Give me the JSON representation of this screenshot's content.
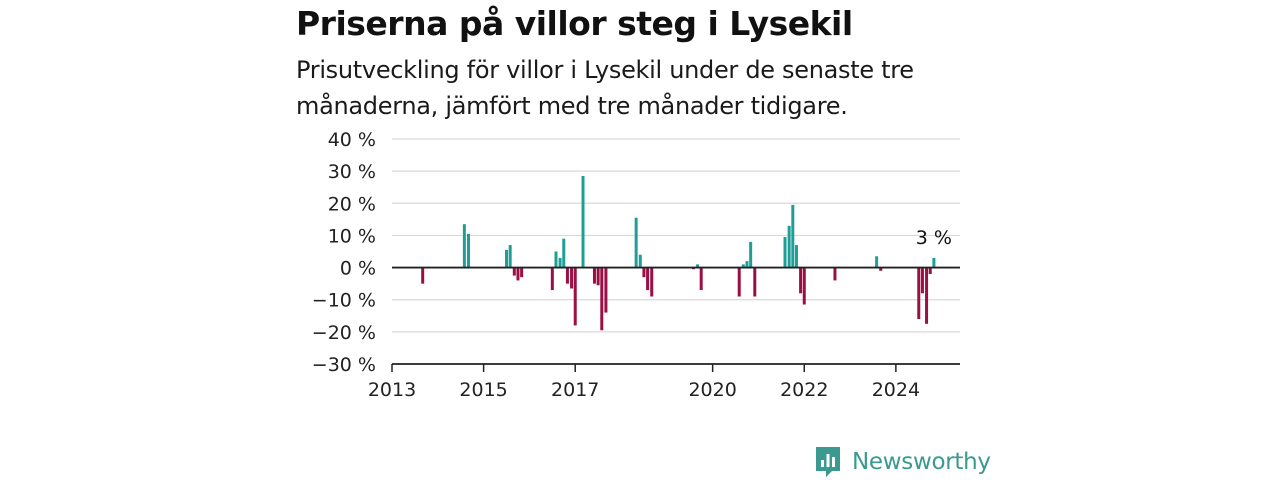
{
  "header": {
    "title": "Priserna på villor steg i Lysekil",
    "subtitle": "Prisutveckling för villor i Lysekil under de senaste tre månaderna, jämfört med tre månader tidigare."
  },
  "branding": {
    "name": "Newsworthy",
    "icon": "newsworthy-logo-icon",
    "color": "#3a9a8f"
  },
  "colors": {
    "positive": "#1f9e98",
    "negative": "#9b0f45",
    "grid": "#d9d9d9",
    "zero_line": "#222222"
  },
  "chart_data": {
    "type": "bar",
    "title": "Priserna på villor steg i Lysekil",
    "ylim": [
      -30,
      40
    ],
    "yticks": [
      -30,
      -20,
      -10,
      0,
      10,
      20,
      30,
      40
    ],
    "ytick_labels": [
      "−30 %",
      "−20 %",
      "−10 %",
      "0 %",
      "10 %",
      "20 %",
      "30 %",
      "40 %"
    ],
    "xlim": [
      2013.0,
      2025.4
    ],
    "xticks": [
      2013,
      2015,
      2017,
      2020,
      2022,
      2024
    ],
    "xtick_labels": [
      "2013",
      "2015",
      "2017",
      "2020",
      "2022",
      "2024"
    ],
    "grid": true,
    "unit": "%",
    "x": [
      2013.67,
      2014.58,
      2014.67,
      2015.5,
      2015.58,
      2015.67,
      2015.75,
      2015.83,
      2016.5,
      2016.58,
      2016.67,
      2016.75,
      2016.83,
      2016.92,
      2017.0,
      2017.17,
      2017.42,
      2017.5,
      2017.58,
      2017.67,
      2018.33,
      2018.42,
      2018.5,
      2018.58,
      2018.67,
      2019.58,
      2019.67,
      2019.75,
      2020.58,
      2020.67,
      2020.75,
      2020.83,
      2020.92,
      2021.58,
      2021.67,
      2021.75,
      2021.83,
      2021.92,
      2022.0,
      2022.67,
      2023.58,
      2023.67,
      2024.5,
      2024.58,
      2024.67,
      2024.75,
      2024.83
    ],
    "values": [
      -5,
      13.5,
      10.5,
      5.5,
      7,
      -2.5,
      -4,
      -3,
      -7,
      5,
      3,
      9,
      -5,
      -6.5,
      -18,
      28.5,
      -5,
      -5.5,
      -19.5,
      -14,
      15.5,
      4,
      -3,
      -7,
      -9,
      -0.5,
      1,
      -7,
      -9,
      1,
      2,
      8,
      -9,
      9.5,
      13,
      19.5,
      7,
      -8,
      -11.5,
      -4,
      3.5,
      -1,
      -16,
      -8,
      -17.5,
      -2,
      3
    ],
    "annotation": {
      "x": 2024.83,
      "text": "3 %"
    }
  }
}
